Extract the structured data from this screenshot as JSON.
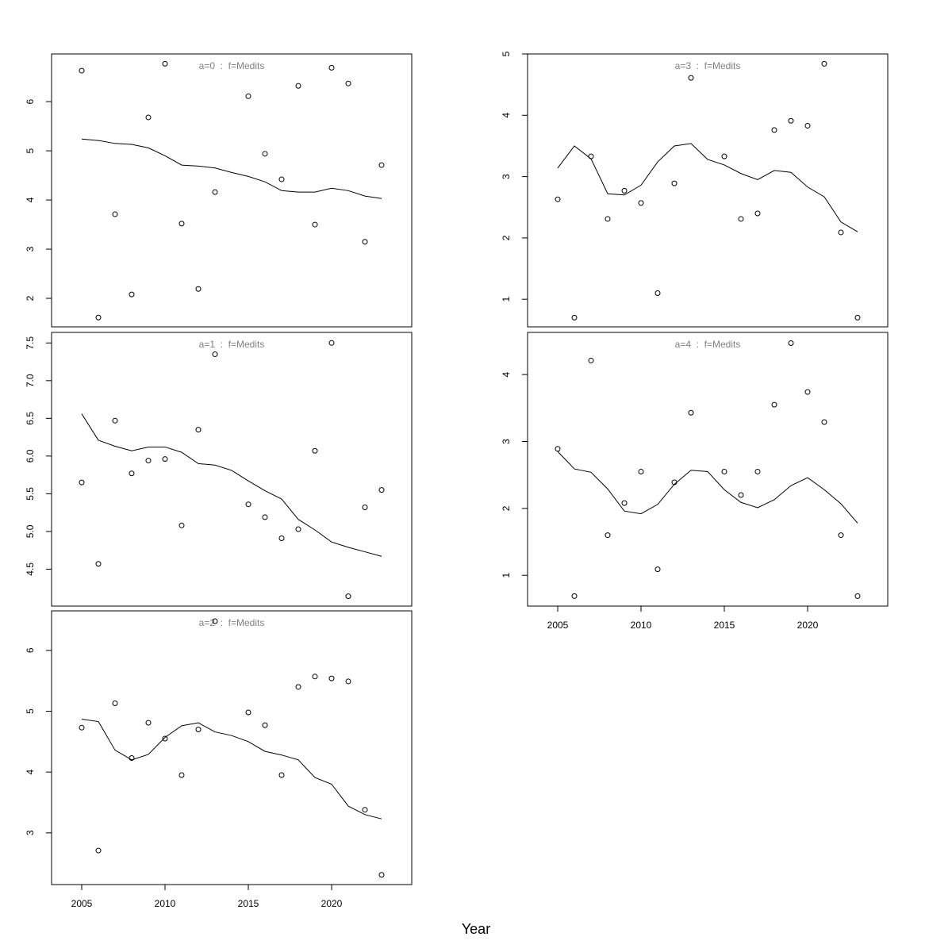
{
  "xlabel": "Year",
  "chart_data": [
    {
      "type": "line",
      "title": "a=0  :  f=Medits",
      "x": [
        2005,
        2006,
        2007,
        2008,
        2009,
        2010,
        2011,
        2012,
        2013,
        2014,
        2015,
        2016,
        2017,
        2018,
        2019,
        2020,
        2021,
        2022,
        2023
      ],
      "xlim": [
        2003.19,
        2024.81
      ],
      "ylim": [
        1.42,
        6.97
      ],
      "yticks": [
        2,
        3,
        4,
        5,
        6
      ],
      "series": [
        {
          "style": "points",
          "color": "#000000",
          "values": [
            6.63,
            1.61,
            3.71,
            2.08,
            5.68,
            6.77,
            3.52,
            2.19,
            4.16,
            null,
            6.11,
            4.94,
            4.42,
            6.32,
            3.5,
            6.69,
            6.37,
            3.15,
            4.71
          ]
        },
        {
          "style": "line",
          "color": "#000000",
          "values": [
            5.24,
            5.21,
            5.15,
            5.13,
            5.06,
            4.9,
            4.71,
            4.69,
            4.65,
            4.56,
            4.48,
            4.37,
            4.19,
            4.16,
            4.16,
            4.24,
            4.19,
            4.08,
            4.03
          ]
        }
      ]
    },
    {
      "type": "line",
      "title": "a=1  :  f=Medits",
      "x": [
        2005,
        2006,
        2007,
        2008,
        2009,
        2010,
        2011,
        2012,
        2013,
        2014,
        2015,
        2016,
        2017,
        2018,
        2019,
        2020,
        2021,
        2022,
        2023
      ],
      "xlim": [
        2003.19,
        2024.81
      ],
      "ylim": [
        4.01,
        7.64
      ],
      "yticks": [
        4.5,
        {
          "value": 5,
          "label": "5.0"
        },
        5.5,
        {
          "value": 6,
          "label": "6.0"
        },
        6.5,
        {
          "value": 7,
          "label": "7.0"
        },
        7.5
      ],
      "series": [
        {
          "style": "points",
          "color": "#000000",
          "values": [
            5.65,
            4.57,
            6.47,
            5.77,
            5.94,
            5.96,
            5.08,
            6.35,
            7.35,
            null,
            5.36,
            5.19,
            4.91,
            5.03,
            6.07,
            7.5,
            4.14,
            5.32,
            5.55
          ]
        },
        {
          "style": "line",
          "color": "#000000",
          "values": [
            6.56,
            6.21,
            6.13,
            6.07,
            6.12,
            6.12,
            6.05,
            5.9,
            5.88,
            5.81,
            5.67,
            5.54,
            5.43,
            5.16,
            5.02,
            4.86,
            4.79,
            4.73,
            4.67
          ]
        }
      ]
    },
    {
      "type": "line",
      "title": "a=2  :  f=Medits",
      "x": [
        2005,
        2006,
        2007,
        2008,
        2009,
        2010,
        2011,
        2012,
        2013,
        2014,
        2015,
        2016,
        2017,
        2018,
        2019,
        2020,
        2021,
        2022,
        2023
      ],
      "xlim": [
        2003.19,
        2024.81
      ],
      "xticks": [
        2005,
        2010,
        2015,
        2020
      ],
      "ylim": [
        2.15,
        6.65
      ],
      "yticks": [
        3,
        4,
        5,
        6
      ],
      "series": [
        {
          "style": "points",
          "color": "#000000",
          "values": [
            4.73,
            2.71,
            5.13,
            4.23,
            4.81,
            4.55,
            3.95,
            4.7,
            6.48,
            null,
            4.98,
            4.77,
            3.95,
            5.4,
            5.57,
            5.54,
            5.49,
            3.38,
            2.31
          ]
        },
        {
          "style": "line",
          "color": "#000000",
          "values": [
            4.87,
            4.83,
            4.36,
            4.2,
            4.29,
            4.57,
            4.76,
            4.81,
            4.66,
            4.6,
            4.5,
            4.34,
            4.28,
            4.2,
            3.91,
            3.8,
            3.44,
            3.3,
            3.23
          ]
        }
      ]
    },
    {
      "type": "line",
      "title": "a=3  :  f=Medits",
      "x": [
        2005,
        2006,
        2007,
        2008,
        2009,
        2010,
        2011,
        2012,
        2013,
        2014,
        2015,
        2016,
        2017,
        2018,
        2019,
        2020,
        2021,
        2022,
        2023
      ],
      "xlim": [
        2003.19,
        2024.81
      ],
      "ylim": [
        0.55,
        5.0
      ],
      "yticks": [
        1,
        2,
        3,
        4,
        5
      ],
      "series": [
        {
          "style": "points",
          "color": "#000000",
          "values": [
            2.63,
            0.7,
            3.33,
            2.31,
            2.77,
            2.57,
            1.1,
            2.89,
            4.61,
            null,
            3.33,
            2.31,
            2.4,
            3.76,
            3.91,
            3.83,
            4.84,
            2.09,
            0.7
          ]
        },
        {
          "style": "line",
          "color": "#000000",
          "values": [
            3.14,
            3.5,
            3.29,
            2.72,
            2.7,
            2.86,
            3.24,
            3.5,
            3.54,
            3.28,
            3.19,
            3.05,
            2.95,
            3.1,
            3.07,
            2.83,
            2.67,
            2.26,
            2.1
          ]
        }
      ]
    },
    {
      "type": "line",
      "title": "a=4  :  f=Medits",
      "x": [
        2005,
        2006,
        2007,
        2008,
        2009,
        2010,
        2011,
        2012,
        2013,
        2014,
        2015,
        2016,
        2017,
        2018,
        2019,
        2020,
        2021,
        2022,
        2023
      ],
      "xlim": [
        2003.19,
        2024.81
      ],
      "xticks": [
        2005,
        2010,
        2015,
        2020
      ],
      "ylim": [
        0.54,
        4.63
      ],
      "yticks": [
        1,
        2,
        3,
        4
      ],
      "series": [
        {
          "style": "points",
          "color": "#000000",
          "values": [
            2.89,
            0.69,
            4.21,
            1.6,
            2.08,
            2.55,
            1.09,
            2.39,
            3.43,
            null,
            2.55,
            2.2,
            2.55,
            3.55,
            4.47,
            3.74,
            3.29,
            1.6,
            0.69
          ]
        },
        {
          "style": "line",
          "color": "#000000",
          "values": [
            2.85,
            2.59,
            2.54,
            2.29,
            1.96,
            1.92,
            2.06,
            2.36,
            2.57,
            2.55,
            2.28,
            2.09,
            2.01,
            2.13,
            2.34,
            2.46,
            2.28,
            2.07,
            1.78
          ]
        }
      ]
    }
  ]
}
